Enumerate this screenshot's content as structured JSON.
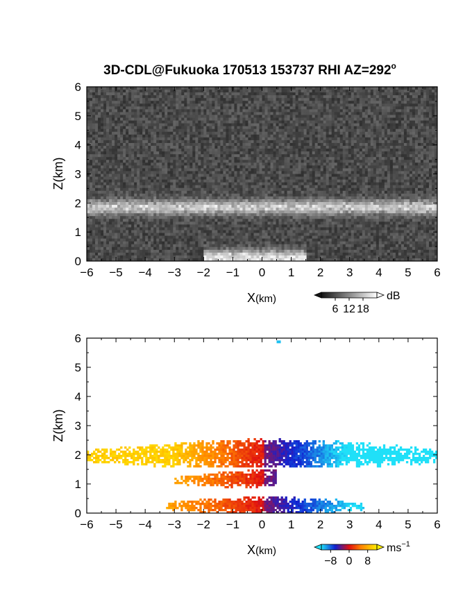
{
  "title": {
    "main": "3D-CDL@Fukuoka 170513 153737 RHI AZ=292",
    "degree": "o"
  },
  "chart_data": [
    {
      "type": "heatmap",
      "name": "reflectivity",
      "xlabel": {
        "main": "X",
        "unit": "(km)"
      },
      "ylabel": "Z(km)",
      "xlim": [
        -6,
        6
      ],
      "ylim": [
        0,
        6
      ],
      "xticks": [
        "-6",
        "-5",
        "-4",
        "-3",
        "-2",
        "-1",
        "0",
        "1",
        "2",
        "3",
        "4",
        "5",
        "6"
      ],
      "yticks": [
        "0",
        "1",
        "2",
        "3",
        "4",
        "5",
        "6"
      ],
      "colormap": "grayscale",
      "background_db": 5,
      "layers": [
        {
          "z_center": 1.85,
          "z_width": 0.25,
          "x_range": [
            -6,
            6
          ],
          "peak_db": 15
        },
        {
          "z_center": 0.12,
          "z_width": 0.25,
          "x_range": [
            -2,
            1.5
          ],
          "peak_db": 18
        }
      ],
      "colorbar": {
        "unit": "dB",
        "ticks": [
          "6",
          "12",
          "18"
        ],
        "range": [
          0,
          24
        ]
      }
    },
    {
      "type": "heatmap",
      "name": "doppler velocity",
      "xlabel": {
        "main": "X",
        "unit": "(km)"
      },
      "ylabel": "Z(km)",
      "xlim": [
        -6,
        6
      ],
      "ylim": [
        0,
        6
      ],
      "xticks": [
        "-6",
        "-5",
        "-4",
        "-3",
        "-2",
        "-1",
        "0",
        "1",
        "2",
        "3",
        "4",
        "5",
        "6"
      ],
      "yticks": [
        "0",
        "1",
        "2",
        "3",
        "4",
        "5",
        "6"
      ],
      "colormap": "velocity",
      "layers": [
        {
          "z_bottom": 1.55,
          "z_top": 2.55,
          "x_range": [
            -6,
            6
          ],
          "v_left": 10,
          "v_right": -10
        },
        {
          "z_bottom": 0.9,
          "z_top": 1.5,
          "x_range": [
            -3,
            0.5
          ],
          "v_left": 8,
          "v_right": -6
        },
        {
          "z_bottom": 0.0,
          "z_top": 0.6,
          "x_range": [
            -3.3,
            3.5
          ],
          "v_left": 7,
          "v_right": -9
        }
      ],
      "colorbar": {
        "unit": "ms",
        "unit_sup": "−1",
        "ticks": [
          "−8",
          "0",
          "8"
        ],
        "range": [
          -12,
          12
        ]
      }
    }
  ],
  "colors": {
    "vel_neg_strong": "#1020d0",
    "vel_neg_weak": "#20e0f8",
    "vel_zero": "#e01010",
    "vel_pos_mid": "#ff8000",
    "vel_pos_weak": "#ffee00"
  }
}
